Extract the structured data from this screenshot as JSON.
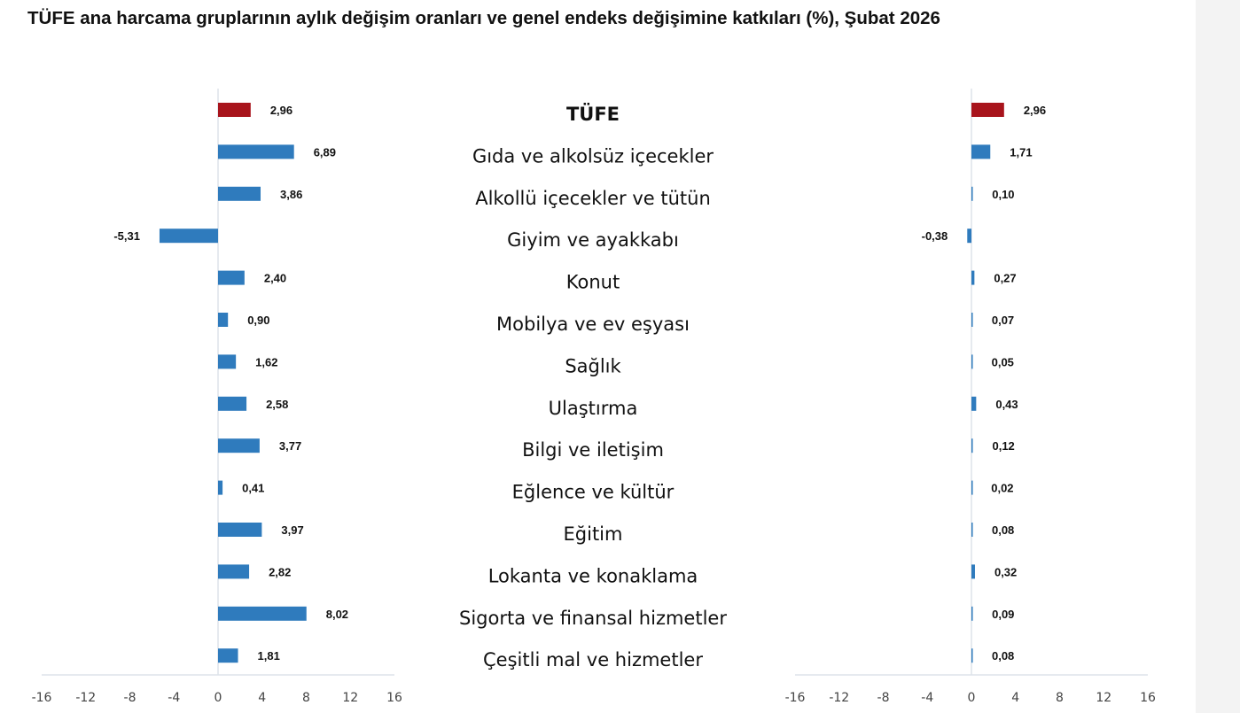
{
  "chart_data": {
    "type": "bar",
    "orientation": "horizontal",
    "title": "TÜFE ana harcama gruplarının aylık değişim oranları ve genel endeks değişimine katkıları (%), Şubat 2026",
    "categories": [
      "TÜFE",
      "Gıda ve alkolsüz içecekler",
      "Alkollü içecekler ve tütün",
      "Giyim ve ayakkabı",
      "Konut",
      "Mobilya ve ev eşyası",
      "Sağlık",
      "Ulaştırma",
      "Bilgi ve iletişim",
      "Eğlence ve kültür",
      "Eğitim",
      "Lokanta ve konaklama",
      "Sigorta ve finansal hizmetler",
      "Çeşitli mal ve hizmetler"
    ],
    "highlight_category": "TÜFE",
    "colors": {
      "highlight": "#a8141c",
      "bar": "#2f7bbd",
      "axis": "#dde3ea"
    },
    "series": [
      {
        "name": "Aylık değişim oranı",
        "values": [
          2.96,
          6.89,
          3.86,
          -5.31,
          2.4,
          0.9,
          1.62,
          2.58,
          3.77,
          0.41,
          3.97,
          2.82,
          8.02,
          1.81
        ],
        "labels": [
          "2,96",
          "6,89",
          "3,86",
          "-5,31",
          "2,40",
          "0,90",
          "1,62",
          "2,58",
          "3,77",
          "0,41",
          "3,97",
          "2,82",
          "8,02",
          "1,81"
        ]
      },
      {
        "name": "Genel endeks değişimine katkı",
        "values": [
          2.96,
          1.71,
          0.1,
          -0.38,
          0.27,
          0.07,
          0.05,
          0.43,
          0.12,
          0.02,
          0.08,
          0.32,
          0.09,
          0.08
        ],
        "labels": [
          "2,96",
          "1,71",
          "0,10",
          "-0,38",
          "0,27",
          "0,07",
          "0,05",
          "0,43",
          "0,12",
          "0,02",
          "0,08",
          "0,32",
          "0,09",
          "0,08"
        ]
      }
    ],
    "xlim": [
      -16,
      16
    ],
    "xticks": [
      "-16",
      "-12",
      "-8",
      "-4",
      "0",
      "4",
      "8",
      "12",
      "16"
    ],
    "xlabel": "",
    "ylabel": "",
    "grid": false,
    "legend": "none"
  }
}
